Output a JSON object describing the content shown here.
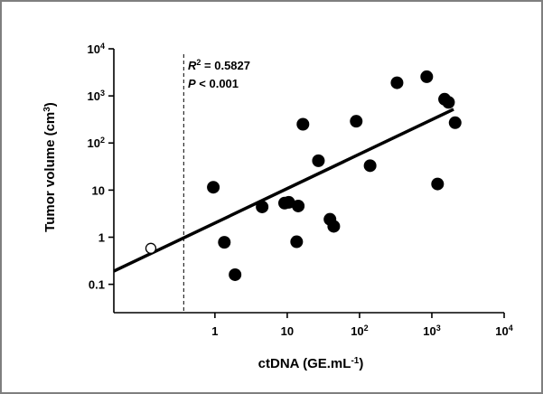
{
  "chart_data": {
    "type": "scatter",
    "xlabel": "ctDNA (GE.mL-1)",
    "ylabel": "Tumor volume (cm3)",
    "x_scale": "log",
    "y_scale": "log",
    "xlim": [
      0.04,
      10000
    ],
    "ylim": [
      0.025,
      10000
    ],
    "x_ticks": [
      {
        "v": 1,
        "t": "1"
      },
      {
        "v": 10,
        "t": "10"
      },
      {
        "v": 100,
        "t": "10",
        "exp": "2"
      },
      {
        "v": 1000,
        "t": "10",
        "exp": "3"
      },
      {
        "v": 10000,
        "t": "10",
        "exp": "4"
      }
    ],
    "y_ticks": [
      {
        "v": 0.1,
        "t": "0.1"
      },
      {
        "v": 1,
        "t": "1"
      },
      {
        "v": 10,
        "t": "10"
      },
      {
        "v": 100,
        "t": "10",
        "exp": "2"
      },
      {
        "v": 1000,
        "t": "10",
        "exp": "3"
      },
      {
        "v": 10000,
        "t": "10",
        "exp": "4"
      }
    ],
    "points": [
      {
        "x": 0.95,
        "y": 11.5
      },
      {
        "x": 1.35,
        "y": 0.78
      },
      {
        "x": 1.9,
        "y": 0.16
      },
      {
        "x": 4.5,
        "y": 4.4
      },
      {
        "x": 9.2,
        "y": 5.3
      },
      {
        "x": 10.5,
        "y": 5.5
      },
      {
        "x": 13.5,
        "y": 0.8
      },
      {
        "x": 14.2,
        "y": 4.6
      },
      {
        "x": 16.5,
        "y": 250
      },
      {
        "x": 27,
        "y": 42
      },
      {
        "x": 39,
        "y": 2.4
      },
      {
        "x": 44,
        "y": 1.7
      },
      {
        "x": 90,
        "y": 290
      },
      {
        "x": 140,
        "y": 33
      },
      {
        "x": 330,
        "y": 1900
      },
      {
        "x": 850,
        "y": 2550
      },
      {
        "x": 1200,
        "y": 13.5
      },
      {
        "x": 1500,
        "y": 850
      },
      {
        "x": 1700,
        "y": 730
      },
      {
        "x": 2100,
        "y": 270
      }
    ],
    "open_points": [
      {
        "x": 0.13,
        "y": 0.58
      }
    ],
    "fit_line": {
      "x": [
        0.04,
        2000
      ],
      "y": [
        0.19,
        520
      ]
    },
    "threshold_x": 0.37,
    "annotation": {
      "r2_label": "R",
      "r2_exp": "2",
      "r2_value": " = 0.5827",
      "p_label": "P",
      "p_value": " < 0.001"
    }
  }
}
